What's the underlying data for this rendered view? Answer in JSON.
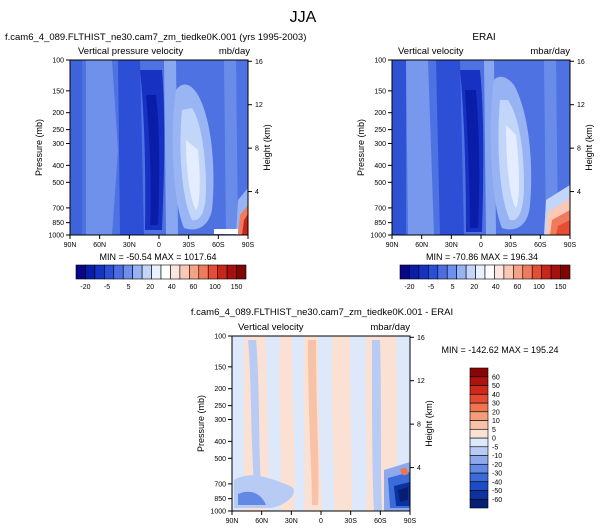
{
  "figure": {
    "title": "JJA"
  },
  "colors": {
    "levels": [
      "#08068a",
      "#0a1da8",
      "#1731c2",
      "#2b4ed6",
      "#4a6ee2",
      "#6e8feb",
      "#98b3f3",
      "#c2d6fa",
      "#e9f1ff",
      "#ffffff",
      "#fde6de",
      "#fbc7b6",
      "#f6a288",
      "#f07a5c",
      "#e64d32",
      "#c9261a",
      "#a61110",
      "#7f0506"
    ],
    "diff_levels": [
      "#071f73",
      "#0c32a0",
      "#1d4dc6",
      "#3a6bdb",
      "#6289e4",
      "#8da9ec",
      "#b7cbf4",
      "#dde8fb",
      "#fbe1d3",
      "#f8c2a6",
      "#f49d7a",
      "#ef7552",
      "#e44b30",
      "#cc2a1b",
      "#ad130f",
      "#8a0606"
    ]
  },
  "panels": [
    {
      "title": "f.cam6_4_089.FLTHIST_ne30.cam7_zm_tiedke0K.001 (yrs 1995-2003)",
      "left_label": "Vertical pressure velocity",
      "right_label": "mb/day",
      "stats": "MIN = -50.54   MAX = 1017.64"
    },
    {
      "title": "ERAI",
      "left_label": "Vertical velocity",
      "right_label": "mbar/day",
      "stats": "MIN = -70.86   MAX = 196.34"
    },
    {
      "title": "f.cam6_4_089.FLTHIST_ne30.cam7_zm_tiedke0K.001 - ERAI",
      "left_label": "Vertical velocity",
      "right_label": "mbar/day",
      "stats": "MIN = -142.62   MAX = 195.24"
    }
  ],
  "chart_data": [
    {
      "type": "heatmap",
      "title": "f.cam6_4_089.FLTHIST_ne30.cam7_zm_tiedke0K.001 (yrs 1995-2003)",
      "subtitle_left": "Vertical pressure velocity",
      "units": "mb/day",
      "xlabel": "",
      "ylabel": "Pressure (mb)",
      "y2label": "Height (km)",
      "x_ticks": [
        "90N",
        "60N",
        "30N",
        "0",
        "30S",
        "60S",
        "90S"
      ],
      "y_ticks": [
        100,
        150,
        200,
        250,
        300,
        400,
        500,
        700,
        850,
        1000
      ],
      "y_log": true,
      "y2_ticks": [
        4,
        8,
        12,
        16
      ],
      "stats": {
        "min": -50.54,
        "max": 1017.64
      },
      "colorbar_labels": [
        "-20",
        "-5",
        "5",
        "20",
        "40",
        "60",
        "100",
        "150"
      ]
    },
    {
      "type": "heatmap",
      "title": "ERAI",
      "subtitle_left": "Vertical velocity",
      "units": "mbar/day",
      "xlabel": "",
      "ylabel": "Pressure (mb)",
      "y2label": "Height (km)",
      "x_ticks": [
        "90N",
        "60N",
        "30N",
        "0",
        "30S",
        "60S",
        "90S"
      ],
      "y_ticks": [
        100,
        150,
        200,
        250,
        300,
        400,
        500,
        700,
        850,
        1000
      ],
      "y_log": true,
      "y2_ticks": [
        4,
        8,
        12,
        16
      ],
      "stats": {
        "min": -70.86,
        "max": 196.34
      },
      "colorbar_labels": [
        "-20",
        "-5",
        "5",
        "20",
        "40",
        "60",
        "100",
        "150"
      ]
    },
    {
      "type": "heatmap",
      "title": "f.cam6_4_089.FLTHIST_ne30.cam7_zm_tiedke0K.001 - ERAI",
      "subtitle_left": "Vertical velocity",
      "units": "mbar/day",
      "xlabel": "",
      "ylabel": "Pressure (mb)",
      "y2label": "Height (km)",
      "x_ticks": [
        "90N",
        "60N",
        "30N",
        "0",
        "30S",
        "60S",
        "90S"
      ],
      "y_ticks": [
        100,
        150,
        200,
        250,
        300,
        400,
        500,
        700,
        850,
        1000
      ],
      "y_log": true,
      "y2_ticks": [
        4,
        8,
        12,
        16
      ],
      "stats": {
        "min": -142.62,
        "max": 195.24
      },
      "colorbar_labels": [
        "60",
        "50",
        "40",
        "30",
        "20",
        "10",
        "5",
        "0",
        "-5",
        "-10",
        "-20",
        "-30",
        "-40",
        "-50",
        "-60"
      ]
    }
  ]
}
